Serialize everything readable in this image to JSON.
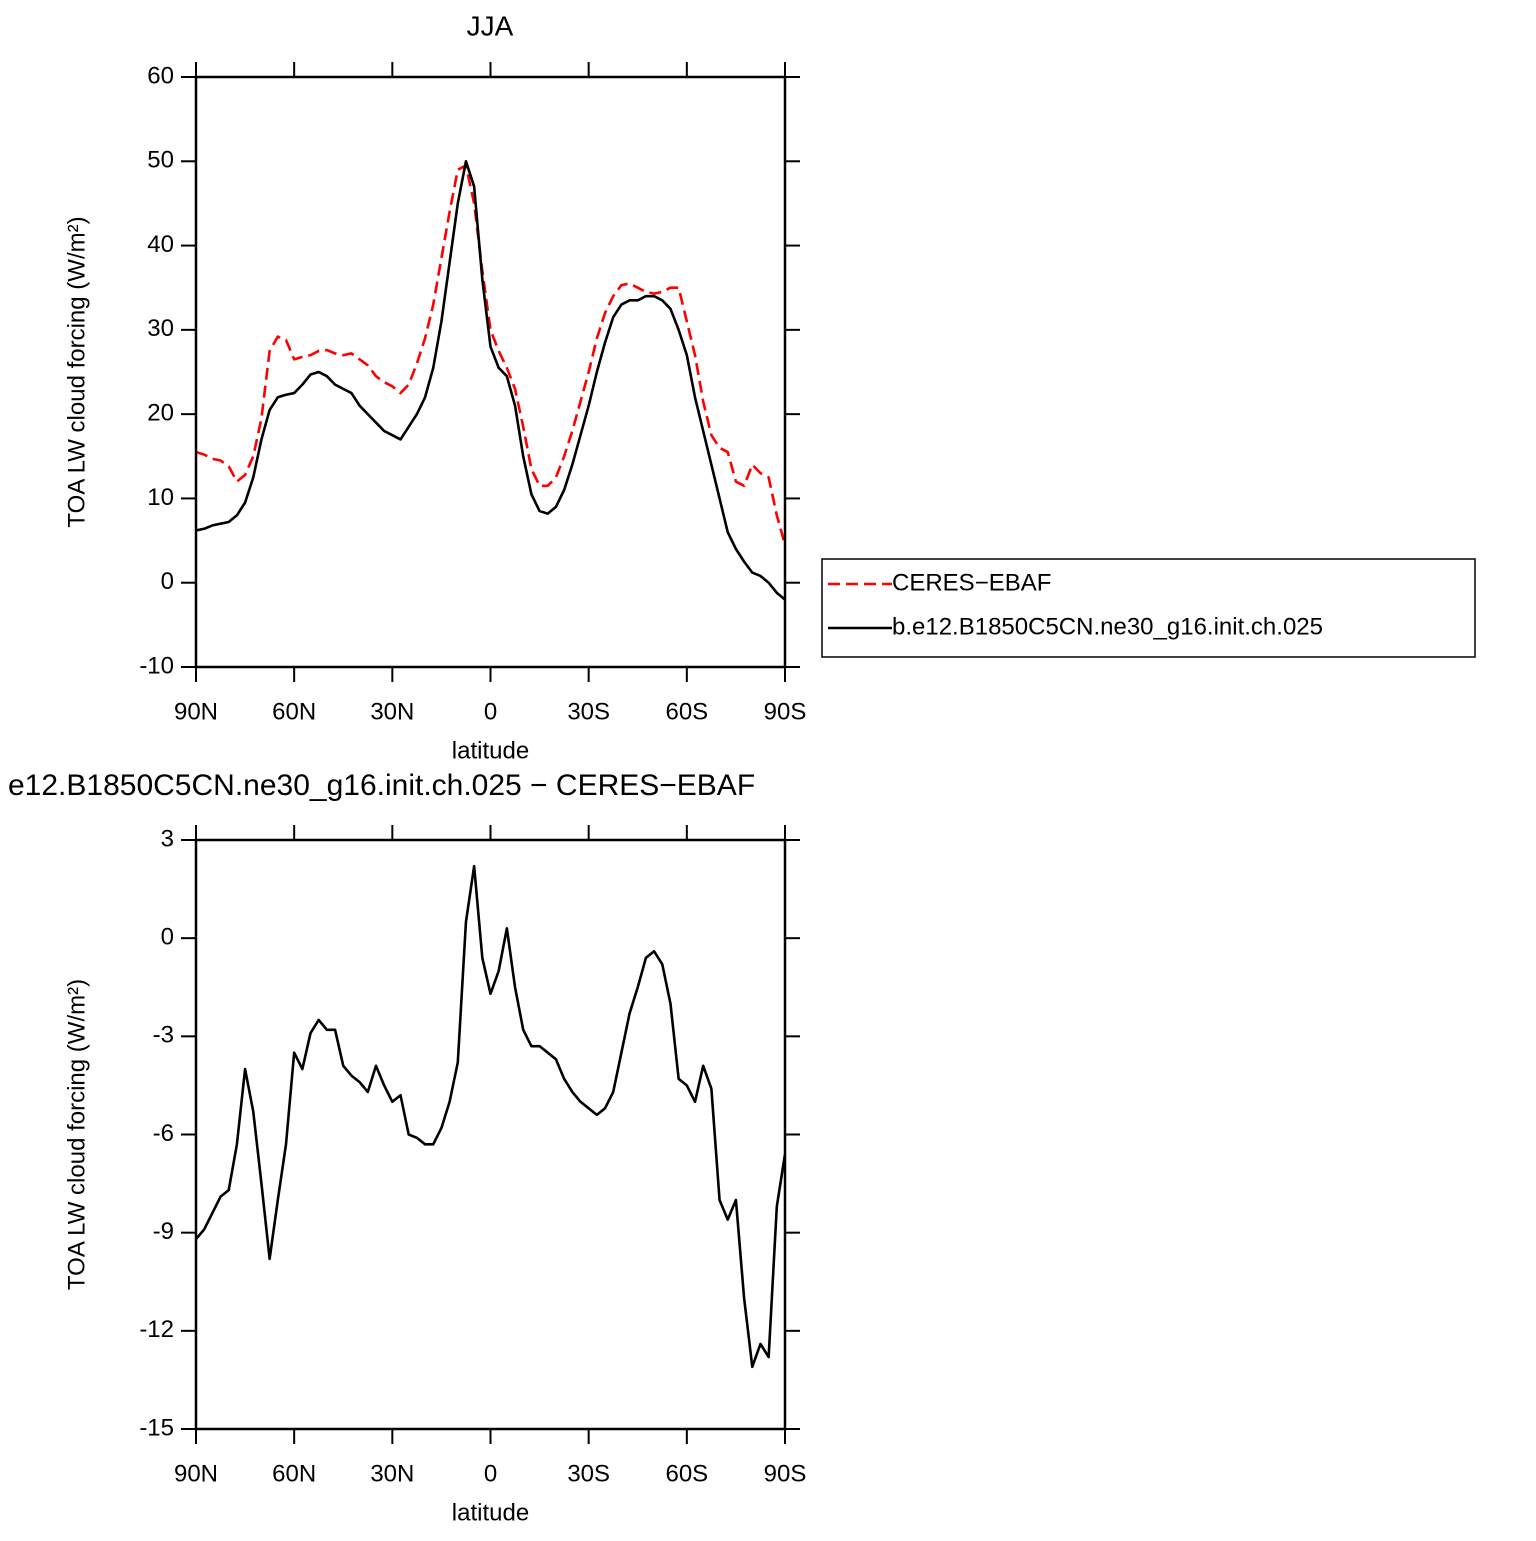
{
  "chart_data": [
    {
      "type": "line",
      "title": "JJA",
      "xlabel": "latitude",
      "ylabel": "TOA LW cloud forcing (W/m²)",
      "x": [
        90,
        87.5,
        85,
        82.5,
        80,
        77.5,
        75,
        72.5,
        70,
        67.5,
        65,
        62.5,
        60,
        57.5,
        55,
        52.5,
        50,
        47.5,
        45,
        42.5,
        40,
        37.5,
        35,
        32.5,
        30,
        27.5,
        25,
        22.5,
        20,
        17.5,
        15,
        12.5,
        10,
        7.5,
        5,
        2.5,
        0,
        -2.5,
        -5,
        -7.5,
        -10,
        -12.5,
        -15,
        -17.5,
        -20,
        -22.5,
        -25,
        -27.5,
        -30,
        -32.5,
        -35,
        -37.5,
        -40,
        -42.5,
        -45,
        -47.5,
        -50,
        -52.5,
        -55,
        -57.5,
        -60,
        -62.5,
        -65,
        -67.5,
        -70,
        -72.5,
        -75,
        -77.5,
        -80,
        -82.5,
        -85,
        -87.5,
        -90
      ],
      "series": [
        {
          "name": "CERES−EBAF",
          "color": "#ff0000",
          "style": "dashed",
          "values": [
            15.5,
            15.2,
            14.7,
            14.5,
            13.8,
            12,
            12.8,
            15,
            19.5,
            27.5,
            29.2,
            28.8,
            26.5,
            26.8,
            27,
            27.5,
            27.6,
            27.2,
            27,
            27.2,
            26.5,
            25.8,
            24.5,
            23.8,
            23.3,
            22.5,
            23.5,
            26,
            29,
            33,
            38.5,
            44,
            49,
            49.5,
            45,
            37,
            30,
            27.5,
            25.5,
            23,
            18.5,
            13.5,
            11.5,
            11.5,
            12.5,
            15,
            18,
            21.5,
            25,
            29,
            32,
            34,
            35.3,
            35.5,
            35,
            34.5,
            34.3,
            34.5,
            35,
            35,
            31,
            27,
            21.5,
            17.5,
            16,
            15.5,
            12,
            11.5,
            14,
            13,
            12.5,
            8,
            4.5
          ]
        },
        {
          "name": "b.e12.B1850C5CN.ne30_g16.init.ch.025",
          "color": "#000000",
          "style": "solid",
          "values": [
            6.2,
            6.4,
            6.8,
            7,
            7.2,
            8,
            9.5,
            12.5,
            17,
            20.5,
            22,
            22.3,
            22.5,
            23.5,
            24.7,
            25,
            24.5,
            23.5,
            23,
            22.5,
            21,
            20,
            19,
            18,
            17.5,
            17,
            18.5,
            20,
            22,
            25.5,
            31,
            38,
            45,
            50,
            47,
            36,
            28,
            25.5,
            24.5,
            21,
            15,
            10.5,
            8.5,
            8.2,
            9,
            11,
            14,
            17.5,
            21,
            25,
            28.5,
            31.5,
            33,
            33.5,
            33.5,
            34,
            34,
            33.5,
            32.5,
            30,
            27,
            22,
            18,
            14,
            10,
            6,
            4,
            2.5,
            1.2,
            0.8,
            0,
            -1.2,
            -2
          ]
        }
      ],
      "xlim": [
        90,
        -90
      ],
      "xticks": [
        {
          "value": 90,
          "label": "90N"
        },
        {
          "value": 60,
          "label": "60N"
        },
        {
          "value": 30,
          "label": "30N"
        },
        0,
        {
          "value": -30,
          "label": "30S"
        },
        {
          "value": -60,
          "label": "60S"
        },
        {
          "value": -90,
          "label": "90S"
        }
      ],
      "ylim": [
        -10,
        60
      ],
      "yticks": [
        -10,
        0,
        10,
        20,
        30,
        40,
        50,
        60
      ],
      "legend": "right"
    },
    {
      "type": "line",
      "title": "e12.B1850C5CN.ne30_g16.init.ch.025 − CERES−EBAF",
      "xlabel": "latitude",
      "ylabel": "TOA LW cloud forcing (W/m²)",
      "x": [
        90,
        87.5,
        85,
        82.5,
        80,
        77.5,
        75,
        72.5,
        70,
        67.5,
        65,
        62.5,
        60,
        57.5,
        55,
        52.5,
        50,
        47.5,
        45,
        42.5,
        40,
        37.5,
        35,
        32.5,
        30,
        27.5,
        25,
        22.5,
        20,
        17.5,
        15,
        12.5,
        10,
        7.5,
        5,
        2.5,
        0,
        -2.5,
        -5,
        -7.5,
        -10,
        -12.5,
        -15,
        -17.5,
        -20,
        -22.5,
        -25,
        -27.5,
        -30,
        -32.5,
        -35,
        -37.5,
        -40,
        -42.5,
        -45,
        -47.5,
        -50,
        -52.5,
        -55,
        -57.5,
        -60,
        -62.5,
        -65,
        -67.5,
        -70,
        -72.5,
        -75,
        -77.5,
        -80,
        -82.5,
        -85,
        -87.5,
        -90
      ],
      "values": [
        -9.2,
        -8.9,
        -8.4,
        -7.9,
        -7.7,
        -6.3,
        -4,
        -5.3,
        -7.5,
        -9.8,
        -8,
        -6.3,
        -3.5,
        -4,
        -2.9,
        -2.5,
        -2.8,
        -2.8,
        -3.9,
        -4.2,
        -4.4,
        -4.7,
        -3.9,
        -4.5,
        -5,
        -4.8,
        -6,
        -6.1,
        -6.3,
        -6.3,
        -5.8,
        -5,
        -3.8,
        0.5,
        2.2,
        -0.6,
        -1.7,
        -1,
        0.3,
        -1.5,
        -2.8,
        -3.3,
        -3.3,
        -3.5,
        -3.7,
        -4.3,
        -4.7,
        -5,
        -5.2,
        -5.4,
        -5.2,
        -4.7,
        -3.5,
        -2.3,
        -1.5,
        -0.6,
        -0.4,
        -0.8,
        -2,
        -4.3,
        -4.5,
        -5,
        -3.9,
        -4.6,
        -8,
        -8.6,
        -8,
        -11,
        -13.1,
        -12.4,
        -12.8,
        -8.2,
        -6.6
      ],
      "color": "#000000",
      "style": "solid",
      "xlim": [
        90,
        -90
      ],
      "xticks": [
        {
          "value": 90,
          "label": "90N"
        },
        {
          "value": 60,
          "label": "60N"
        },
        {
          "value": 30,
          "label": "30N"
        },
        0,
        {
          "value": -30,
          "label": "30S"
        },
        {
          "value": -60,
          "label": "60S"
        },
        {
          "value": -90,
          "label": "90S"
        }
      ],
      "ylim": [
        -15,
        3
      ],
      "yticks": [
        -15,
        -12,
        -9,
        -6,
        -3,
        0,
        3
      ]
    }
  ]
}
